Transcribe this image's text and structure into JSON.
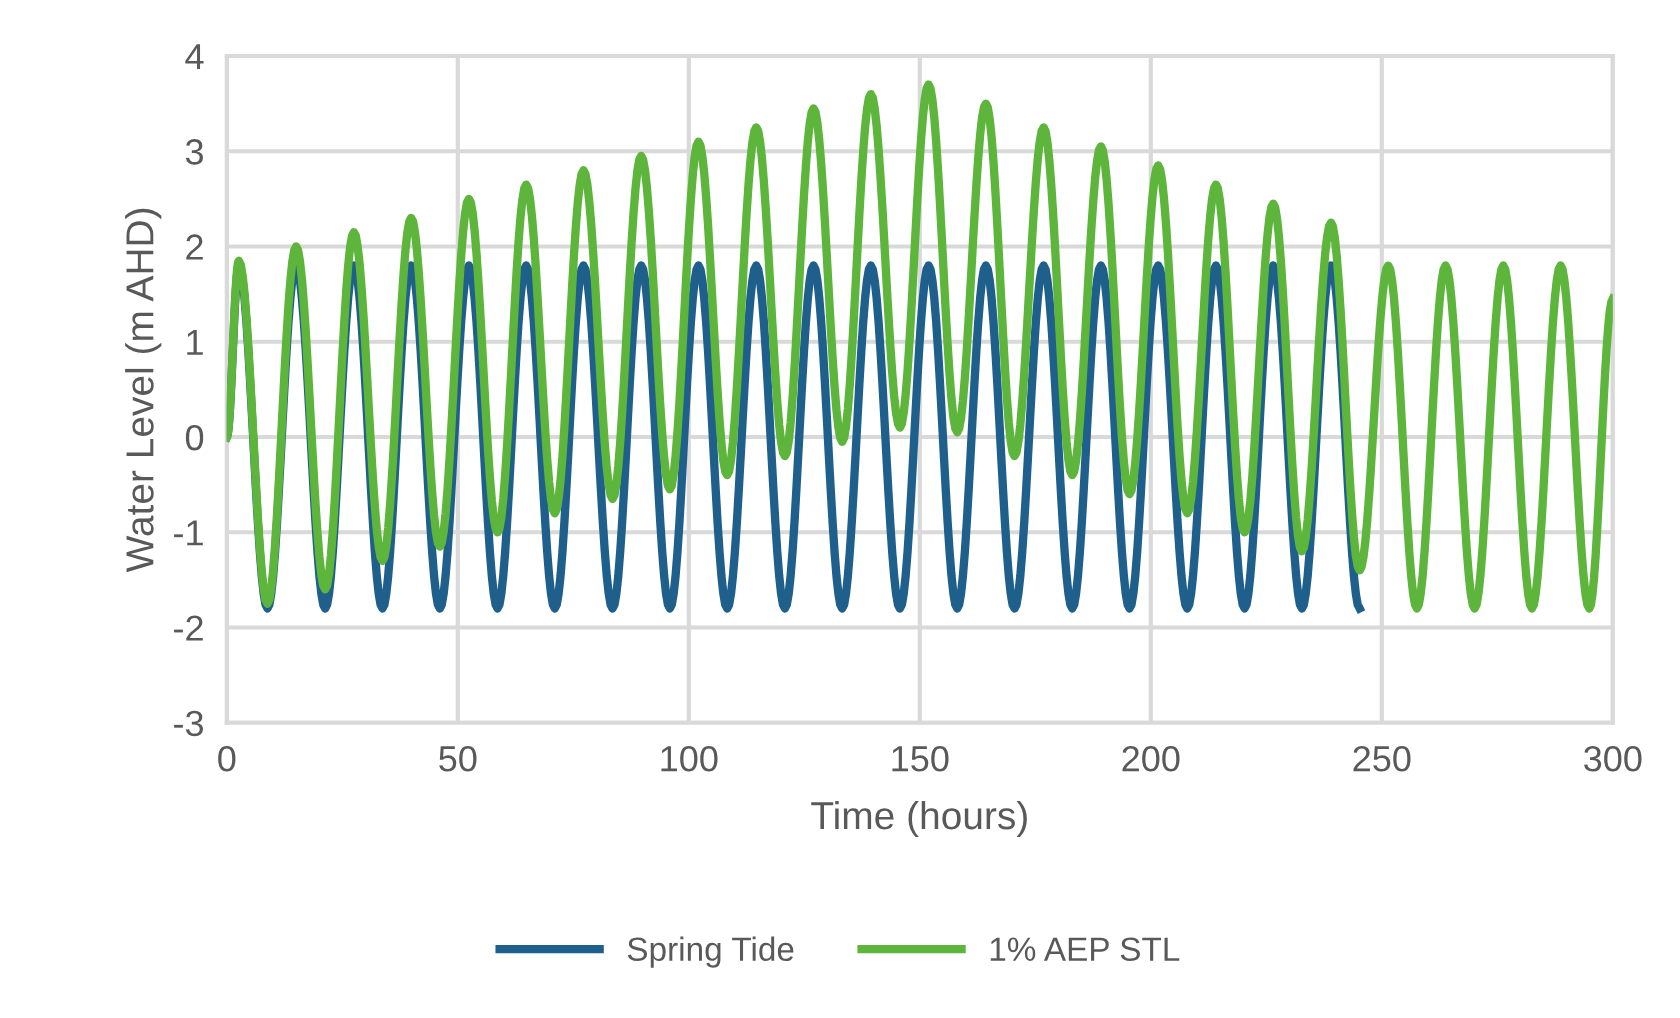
{
  "chart_data": {
    "type": "line",
    "xlabel": "Time (hours)",
    "ylabel": "Water Level (m AHD)",
    "xlim": [
      0,
      300
    ],
    "ylim": [
      -3,
      4
    ],
    "xticks": [
      0,
      50,
      100,
      150,
      200,
      250,
      300
    ],
    "yticks": [
      -3,
      -2,
      -1,
      0,
      1,
      2,
      3,
      4
    ],
    "grid": true,
    "legend": "bottom",
    "line_style": "solid",
    "marker": "none",
    "series": [
      {
        "name": "Spring Tide",
        "color": "#1f5f8b",
        "x": [
          0,
          2.6,
          8.8,
          15.0,
          21.3,
          27.5,
          33.7,
          39.9,
          46.1,
          52.4,
          58.6,
          64.8,
          71.0,
          77.2,
          83.5,
          89.7,
          95.9,
          102.1,
          108.3,
          114.6,
          120.8,
          127.0,
          133.2,
          139.4,
          145.7,
          151.9,
          158.1,
          164.3,
          170.5,
          176.8,
          183.0,
          189.2,
          195.4,
          201.6,
          207.9,
          214.1,
          220.3,
          226.5,
          232.7,
          239.0,
          245.2
        ],
        "values": [
          0,
          1.8,
          -1.8,
          1.8,
          -1.8,
          1.8,
          -1.8,
          1.8,
          -1.8,
          1.8,
          -1.8,
          1.8,
          -1.8,
          1.8,
          -1.8,
          1.8,
          -1.8,
          1.8,
          -1.8,
          1.8,
          -1.8,
          1.8,
          -1.8,
          1.8,
          -1.8,
          1.8,
          -1.8,
          1.8,
          -1.8,
          1.8,
          -1.8,
          1.8,
          -1.8,
          1.8,
          -1.8,
          1.8,
          -1.8,
          1.8,
          -1.8,
          1.8,
          -1.8
        ]
      },
      {
        "name": "1% AEP STL",
        "color": "#5db53c",
        "x": [
          0,
          2.6,
          8.8,
          15.0,
          21.3,
          27.5,
          33.7,
          39.9,
          46.1,
          52.4,
          58.6,
          64.8,
          71.0,
          77.2,
          83.5,
          89.7,
          95.9,
          102.1,
          108.3,
          114.6,
          120.8,
          127.0,
          133.2,
          139.4,
          145.7,
          151.9,
          158.1,
          164.3,
          170.5,
          176.8,
          183.0,
          189.2,
          195.4,
          201.6,
          207.9,
          214.1,
          220.3,
          226.5,
          232.7,
          239.0,
          245.2,
          251.4,
          257.6,
          263.8,
          270.1,
          276.3,
          282.5,
          288.7,
          294.9,
          300
        ],
        "values": [
          0,
          1.85,
          -1.75,
          2.0,
          -1.6,
          2.15,
          -1.3,
          2.3,
          -1.15,
          2.5,
          -1.0,
          2.65,
          -0.8,
          2.8,
          -0.65,
          2.95,
          -0.55,
          3.1,
          -0.4,
          3.25,
          -0.2,
          3.45,
          -0.05,
          3.6,
          0.1,
          3.7,
          0.05,
          3.5,
          -0.2,
          3.25,
          -0.4,
          3.05,
          -0.6,
          2.85,
          -0.8,
          2.65,
          -1.0,
          2.45,
          -1.2,
          2.25,
          -1.4,
          1.8,
          -1.8,
          1.8,
          -1.8,
          1.8,
          -1.8,
          1.8,
          -1.8,
          1.45
        ]
      }
    ]
  }
}
